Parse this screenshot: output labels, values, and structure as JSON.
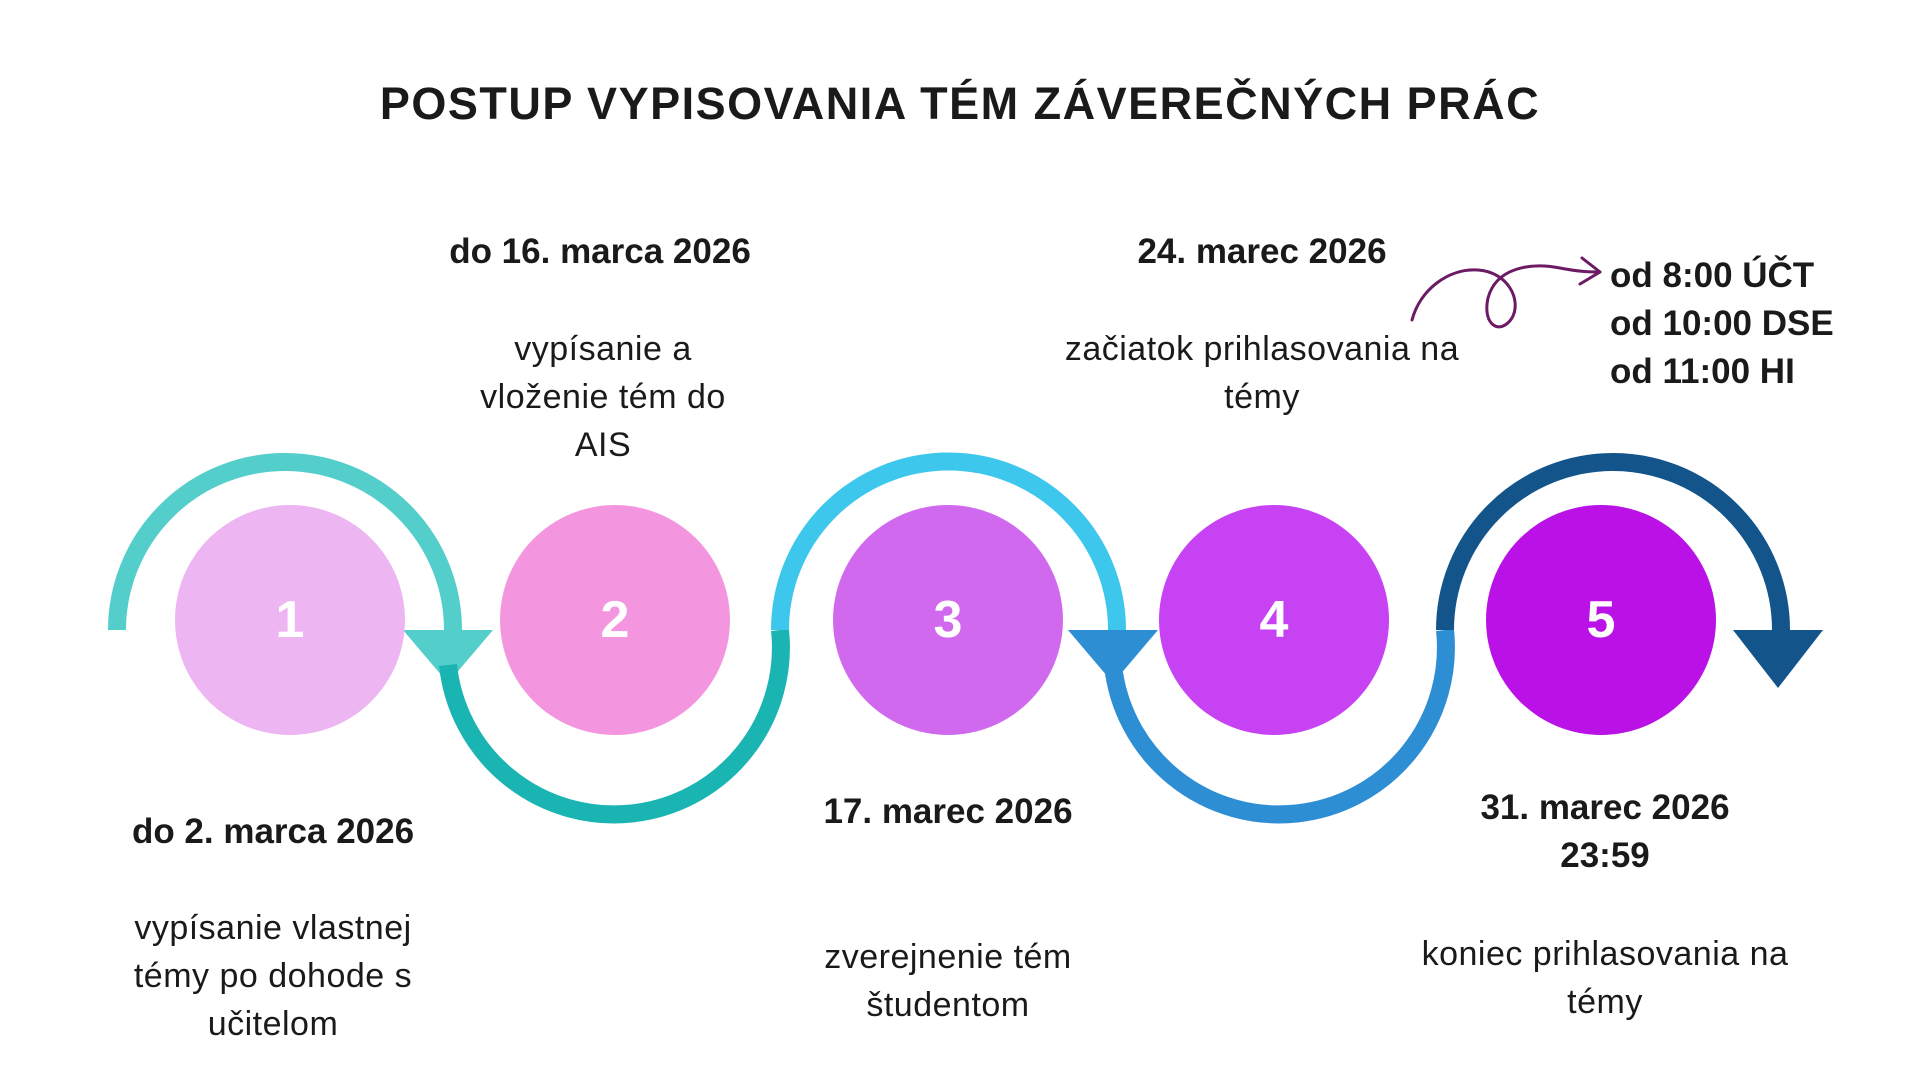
{
  "title": "POSTUP VYPISOVANIA TÉM ZÁVEREČNÝCH PRÁC",
  "steps": [
    {
      "number": "1",
      "date": "do 2. marca 2026",
      "description": "vypísanie vlastnej témy po dohode s učitelom",
      "color": "#EDB5F2"
    },
    {
      "number": "2",
      "date": "do 16. marca 2026",
      "description": "vypísanie a vloženie tém do AIS",
      "color": "#F396DF"
    },
    {
      "number": "3",
      "date": "17. marec 2026",
      "description": "zverejnenie tém študentom",
      "color": "#D169EE"
    },
    {
      "number": "4",
      "date": "24.  marec 2026",
      "description": "začiatok prihlasovania na témy",
      "color": "#C742F3"
    },
    {
      "number": "5",
      "date": "31. marec 2026 23:59",
      "description": "koniec prihlasovania na témy",
      "color": "#BA12E6"
    }
  ],
  "login_times": [
    "od 8:00 ÚČT",
    "od 10:00 DSE",
    "od 11:00 HI"
  ],
  "arrow_colors": {
    "arc1": "#54CECB",
    "arc2": "#1AB5B2",
    "arc3": "#3EC7EC",
    "arc4": "#2E8ED4",
    "arc5": "#13548A"
  },
  "squiggle_arrow_color": "#6B1A63"
}
